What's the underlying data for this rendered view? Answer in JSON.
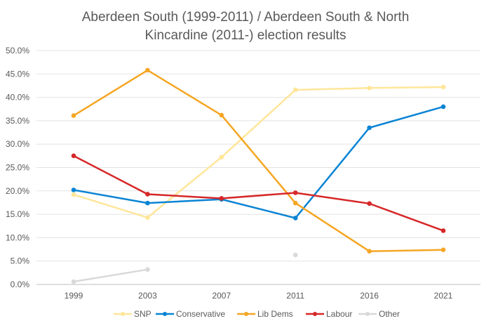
{
  "chart_data": {
    "type": "line",
    "title": [
      "Aberdeen South (1999-2011) / Aberdeen South & North",
      "Kincardine (2011-) election results"
    ],
    "categories": [
      "1999",
      "2003",
      "2007",
      "2011",
      "2016",
      "2021"
    ],
    "ylim": [
      0,
      50
    ],
    "yticks": [
      "0.0%",
      "5.0%",
      "10.0%",
      "15.0%",
      "20.0%",
      "25.0%",
      "30.0%",
      "35.0%",
      "40.0%",
      "45.0%",
      "50.0%"
    ],
    "grid": true,
    "legend": "bottom",
    "series": [
      {
        "name": "SNP",
        "color": "#FFE699",
        "values": [
          19.2,
          14.3,
          27.2,
          41.6,
          42.0,
          42.2
        ]
      },
      {
        "name": "Conservative",
        "color": "#0A84D4",
        "values": [
          20.2,
          17.4,
          18.2,
          14.2,
          33.5,
          38.0
        ]
      },
      {
        "name": "Lib Dems",
        "color": "#F5A623",
        "values": [
          36.1,
          45.8,
          36.2,
          17.4,
          7.1,
          7.4
        ]
      },
      {
        "name": "Labour",
        "color": "#D62728",
        "values": [
          27.5,
          19.3,
          18.4,
          19.6,
          17.3,
          11.5
        ]
      },
      {
        "name": "Other",
        "color": "#D9D9D9",
        "values": [
          0.6,
          3.2,
          null,
          6.3,
          null,
          null
        ]
      }
    ]
  }
}
